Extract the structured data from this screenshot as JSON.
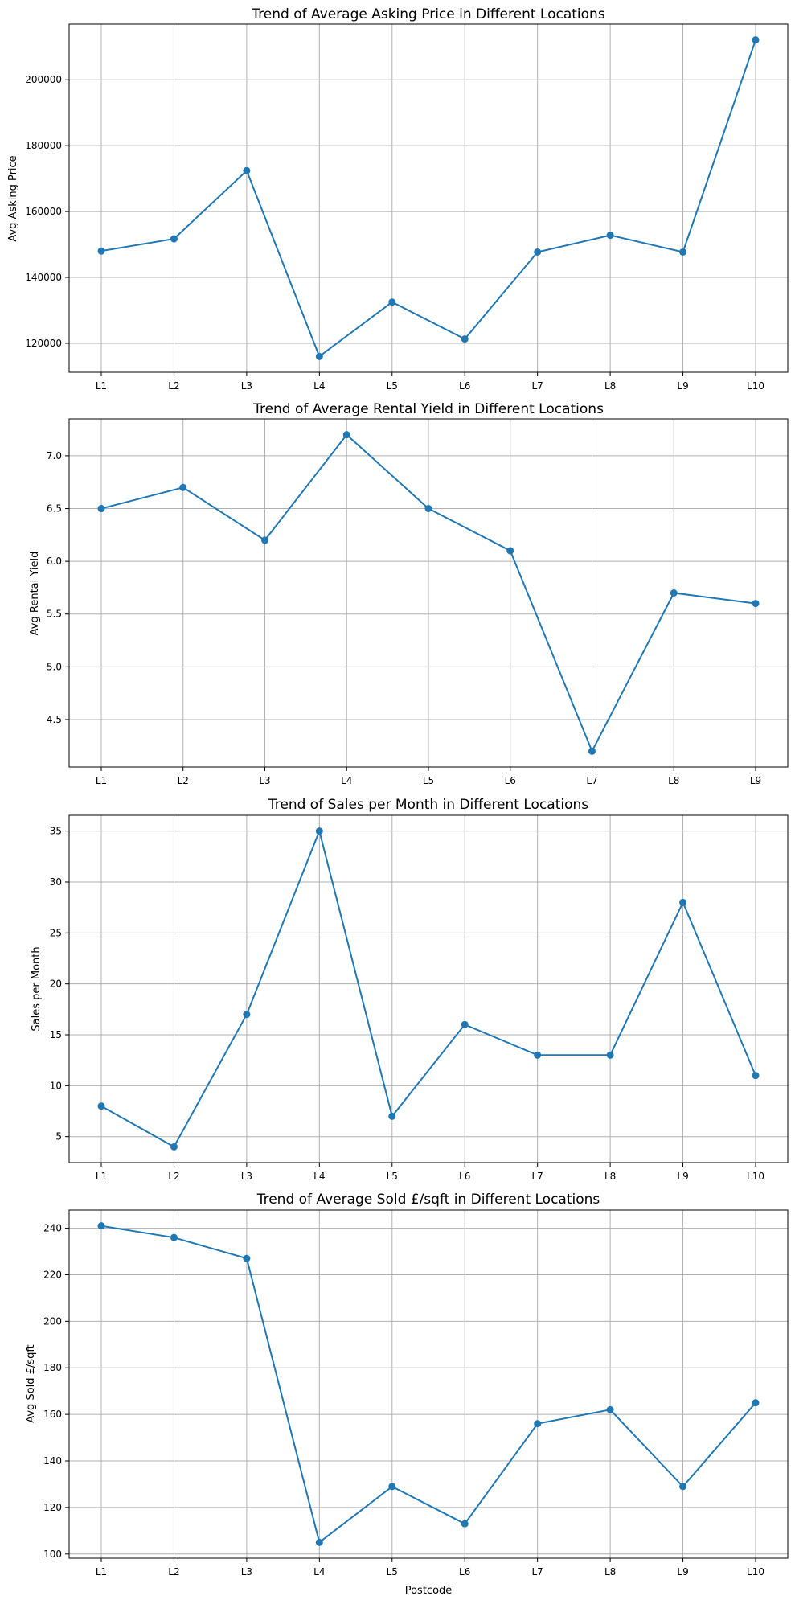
{
  "colors": {
    "series": "#1f77b4",
    "grid": "#b0b0b0",
    "frame": "#000000"
  },
  "chart_data": [
    {
      "type": "line",
      "title": "Trend of Average Asking Price in Different Locations",
      "xlabel": "",
      "ylabel": "Avg Asking Price",
      "x": [
        "L1",
        "L2",
        "L3",
        "L4",
        "L5",
        "L6",
        "L7",
        "L8",
        "L9",
        "L10"
      ],
      "values": [
        148000,
        151700,
        172400,
        116000,
        132500,
        121300,
        147700,
        152800,
        147700,
        212100
      ],
      "ylim": [
        111200,
        216900
      ],
      "yticks": [
        120000,
        140000,
        160000,
        180000,
        200000
      ],
      "ytick_labels": [
        "120000",
        "140000",
        "160000",
        "180000",
        "200000"
      ],
      "grid": true
    },
    {
      "type": "line",
      "title": "Trend of Average Rental Yield in Different Locations",
      "xlabel": "",
      "ylabel": "Avg Rental Yield",
      "x": [
        "L1",
        "L2",
        "L3",
        "L4",
        "L5",
        "L6",
        "L7",
        "L8",
        "L9"
      ],
      "values": [
        6.5,
        6.7,
        6.2,
        7.2,
        6.5,
        6.1,
        4.2,
        5.7,
        5.6
      ],
      "ylim": [
        4.05,
        7.35
      ],
      "yticks": [
        4.5,
        5.0,
        5.5,
        6.0,
        6.5,
        7.0
      ],
      "ytick_labels": [
        "4.5",
        "5.0",
        "5.5",
        "6.0",
        "6.5",
        "7.0"
      ],
      "grid": true
    },
    {
      "type": "line",
      "title": "Trend of Sales per Month in Different Locations",
      "xlabel": "",
      "ylabel": "Sales per Month",
      "x": [
        "L1",
        "L2",
        "L3",
        "L4",
        "L5",
        "L6",
        "L7",
        "L8",
        "L9",
        "L10"
      ],
      "values": [
        8,
        4,
        17,
        35,
        7,
        16,
        13,
        13,
        28,
        11
      ],
      "ylim": [
        2.45,
        36.55
      ],
      "yticks": [
        5,
        10,
        15,
        20,
        25,
        30,
        35
      ],
      "ytick_labels": [
        "5",
        "10",
        "15",
        "20",
        "25",
        "30",
        "35"
      ],
      "grid": true
    },
    {
      "type": "line",
      "title": "Trend of Average Sold £/sqft in Different Locations",
      "xlabel": "Postcode",
      "ylabel": "Avg Sold £/sqft",
      "x": [
        "L1",
        "L2",
        "L3",
        "L4",
        "L5",
        "L6",
        "L7",
        "L8",
        "L9",
        "L10"
      ],
      "values": [
        241,
        236,
        227,
        105,
        129,
        113,
        156,
        162,
        129,
        165
      ],
      "ylim": [
        98.2,
        247.8
      ],
      "yticks": [
        100,
        120,
        140,
        160,
        180,
        200,
        220,
        240
      ],
      "ytick_labels": [
        "100",
        "120",
        "140",
        "160",
        "180",
        "200",
        "220",
        "240"
      ],
      "grid": true
    }
  ]
}
